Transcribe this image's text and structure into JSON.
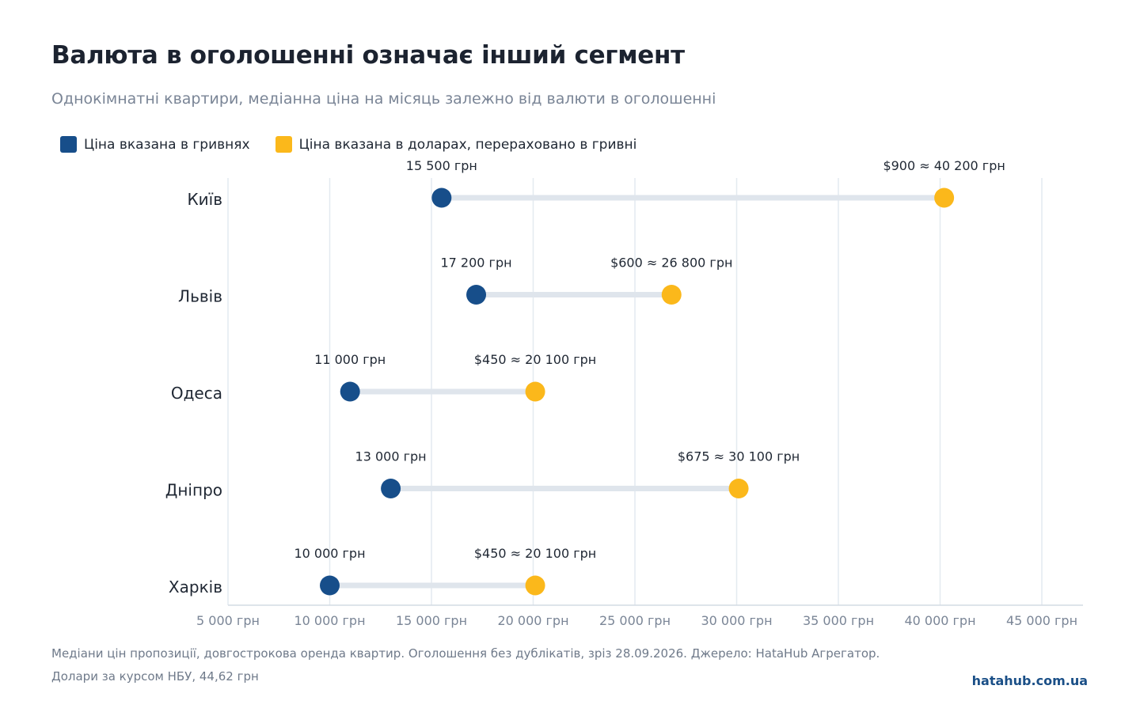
{
  "title": "Валюта в оголошенні означає інший сегмент",
  "subtitle": "Однокімнатні квартири, медіанна ціна на місяць залежно від валюти в оголошенні",
  "legend": {
    "uah": "Ціна вказана в гривнях",
    "usd": "Ціна вказана в доларах, перераховано в гривні"
  },
  "colors": {
    "uah": "#174e8a",
    "usd": "#fbb81b",
    "connector": "#dfe5ec",
    "grid": "#e4eaf0"
  },
  "chart_data": {
    "type": "dumbbell",
    "xlim": [
      5000,
      47000
    ],
    "x_ticks": [
      5000,
      10000,
      15000,
      20000,
      25000,
      30000,
      35000,
      40000,
      45000
    ],
    "x_tick_labels": [
      "5 000 грн",
      "10 000 грн",
      "15 000 грн",
      "20 000 грн",
      "25 000 грн",
      "30 000 грн",
      "35 000 грн",
      "40 000 грн",
      "45 000 грн"
    ],
    "categories": [
      "Київ",
      "Львів",
      "Одеса",
      "Дніпро",
      "Харків"
    ],
    "series": [
      {
        "name": "Ціна вказана в гривнях",
        "values": [
          15500,
          17200,
          11000,
          13000,
          10000
        ],
        "labels": [
          "15 500 грн",
          "17 200 грн",
          "11 000 грн",
          "13 000 грн",
          "10 000 грн"
        ]
      },
      {
        "name": "Ціна вказана в доларах, перераховано в гривні",
        "values": [
          40200,
          26800,
          20100,
          30100,
          20100
        ],
        "labels": [
          "$900 ≈ 40 200 грн",
          "$600 ≈ 26 800 грн",
          "$450 ≈ 20 100 грн",
          "$675 ≈ 30 100 грн",
          "$450 ≈ 20 100 грн"
        ]
      }
    ],
    "grid": true,
    "legend_position": "top-left"
  },
  "footnote": {
    "line1": "Медіани цін пропозиції, довгострокова оренда квартир. Оголошення без дублікатів, зріз 28.09.2026. Джерело: HataHub Агрегатор.",
    "line2": "Долари за курсом НБУ, 44,62 грн"
  },
  "brand": "hatahub.com.ua"
}
